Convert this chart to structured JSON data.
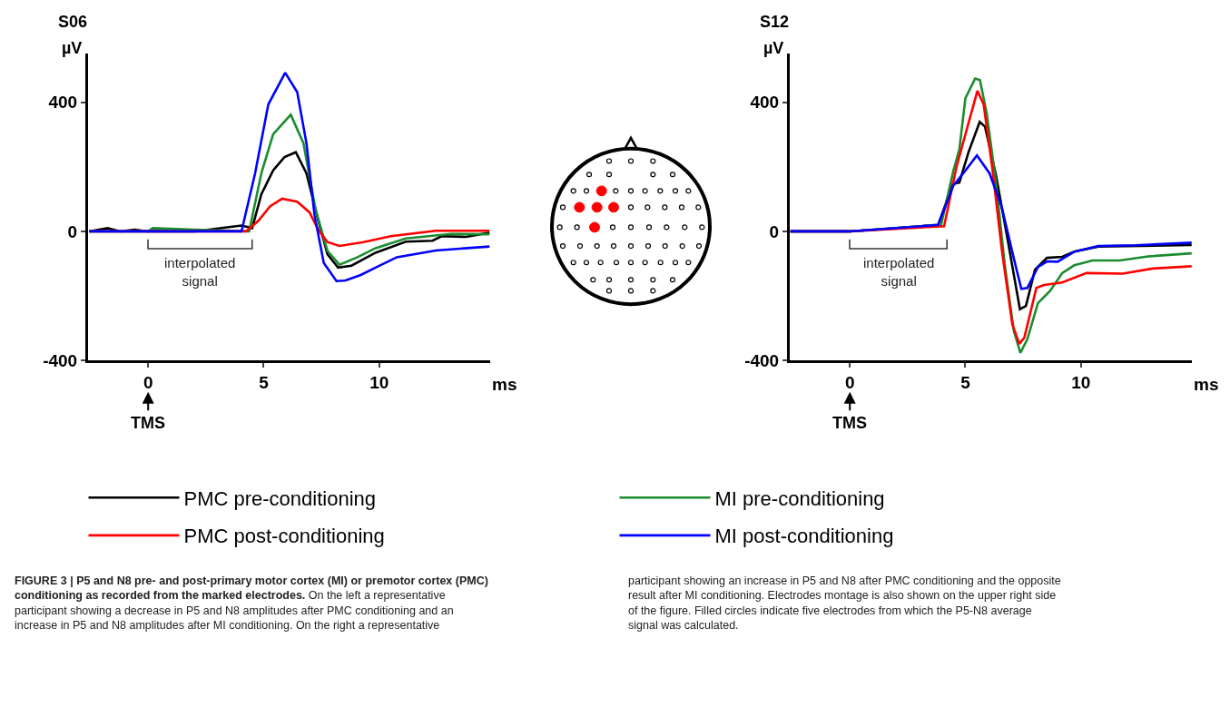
{
  "chart_data": [
    {
      "type": "line",
      "title": "S06",
      "xlabel": "ms",
      "ylabel": "µV",
      "xlim": [
        -2.6,
        14.8
      ],
      "ylim": [
        -400,
        550
      ],
      "xticks": [
        0,
        5,
        10
      ],
      "yticks": [
        -400,
        0,
        400
      ],
      "legend": "bottom",
      "series": [
        {
          "name": "PMC pre-conditioning",
          "color": "#000000",
          "x": [
            -2.55,
            -1.76,
            -1.2,
            -0.59,
            0,
            2,
            4.04,
            4.5,
            4.9,
            5.41,
            5.9,
            6.39,
            6.85,
            7.37,
            7.76,
            8.22,
            8.8,
            9.84,
            11.15,
            12.3,
            12.7,
            13.75,
            14.77
          ],
          "values": [
            0,
            10,
            0,
            5,
            0,
            0,
            18,
            10,
            115,
            189,
            230,
            245,
            180,
            32,
            -71,
            -112,
            -106,
            -66,
            -32,
            -29,
            -15,
            -17,
            -4
          ]
        },
        {
          "name": "MI pre-conditioning",
          "color": "#1a8c2e",
          "x": [
            -2.55,
            0,
            0.2,
            2,
            4.37,
            4.9,
            5.41,
            6.17,
            6.72,
            7.24,
            7.76,
            8.28,
            9.06,
            9.84,
            11.15,
            13.1,
            14.77
          ],
          "values": [
            0,
            0,
            10,
            5,
            0,
            180,
            301,
            361,
            273,
            69,
            -61,
            -103,
            -80,
            -52,
            -22,
            -8,
            -9
          ]
        },
        {
          "name": "PMC post-conditioning",
          "color": "#ff0000",
          "x": [
            -2.55,
            0,
            4.24,
            4.76,
            5.28,
            5.8,
            6.45,
            6.98,
            7.37,
            7.76,
            8.28,
            9.32,
            10.5,
            12.45,
            14.77
          ],
          "values": [
            0,
            0,
            0,
            32,
            78,
            101,
            92,
            59,
            4,
            -33,
            -45,
            -33,
            -15,
            2,
            2
          ]
        },
        {
          "name": "MI post-conditioning",
          "color": "#0000ff",
          "x": [
            -2.55,
            0,
            4.04,
            4.63,
            5.2,
            5.93,
            6.45,
            6.85,
            7.2,
            7.6,
            8.15,
            8.54,
            9.2,
            9.84,
            10.76,
            12.45,
            14.77
          ],
          "values": [
            0,
            0,
            0,
            180,
            393,
            491,
            431,
            273,
            50,
            -98,
            -154,
            -152,
            -135,
            -112,
            -80,
            -59,
            -47
          ]
        }
      ],
      "annotations": [
        {
          "text": "TMS",
          "x": 0
        },
        "interpolated signal",
        "FIGURE 3 | P5 and N8 pre- and post-primary motor cortex (MI) or premotor cortex (PMC) conditioning as recorded from the marked electrodes.",
        "On the left a representative participant showing a decrease in P5 and N8 amplitudes after PMC conditioning and an increase in P5 and N8 amplitudes after MI conditioning. On the right a representative participant showing an increase in P5 and N8 after PMC conditioning and the opposite result after MI conditioning. Electrodes montage is also shown on the upper right side of the figure. Filled circles indicate five electrodes from which the P5-N8 average signal was calculated."
      ]
    },
    {
      "type": "line",
      "title": "S12",
      "xlabel": "ms",
      "ylabel": "µV",
      "xlim": [
        -2.6,
        14.8
      ],
      "ylim": [
        -400,
        550
      ],
      "xticks": [
        0,
        5,
        10
      ],
      "yticks": [
        -400,
        0,
        400
      ],
      "series": [
        {
          "color": "#000000",
          "x": [
            -2.57,
            0,
            3.82,
            4.15,
            4.41,
            4.74,
            5.13,
            5.62,
            5.85,
            6.31,
            6.83,
            7.36,
            7.62,
            8.01,
            8.53,
            9.19,
            9.71,
            10.76,
            14.79
          ],
          "values": [
            0,
            0,
            20,
            86,
            146,
            151,
            244,
            339,
            324,
            179,
            -26,
            -241,
            -231,
            -119,
            -82,
            -79,
            -63,
            -47,
            -42
          ]
        },
        {
          "color": "#1a8c2e",
          "x": [
            -2.57,
            0,
            3.95,
            4.48,
            4.74,
            5,
            5.42,
            5.63,
            5.92,
            6.31,
            6.7,
            7.09,
            7.38,
            7.68,
            8.14,
            8.66,
            9.19,
            9.71,
            10.5,
            11.68,
            12.98,
            14.79
          ],
          "values": [
            0,
            0,
            20,
            188,
            254,
            412,
            473,
            468,
            366,
            160,
            -101,
            -306,
            -376,
            -334,
            -222,
            -185,
            -129,
            -105,
            -90,
            -90,
            -77,
            -68
          ]
        },
        {
          "color": "#ff0000",
          "x": [
            -2.57,
            0,
            4.08,
            4.61,
            5,
            5.52,
            5.79,
            6.18,
            6.57,
            7.03,
            7.33,
            7.55,
            8.07,
            8.4,
            9.19,
            10.24,
            11.81,
            13.1,
            14.79
          ],
          "values": [
            0,
            0,
            16,
            198,
            300,
            435,
            393,
            188,
            -54,
            -287,
            -348,
            -329,
            -175,
            -166,
            -158,
            -129,
            -131,
            -115,
            -108
          ]
        },
        {
          "color": "#0000ff",
          "x": [
            -2.57,
            0,
            3.82,
            4.08,
            4.48,
            5,
            5.5,
            6.05,
            6.57,
            7.09,
            7.42,
            7.68,
            8.14,
            8.53,
            8.99,
            9.71,
            10.76,
            12.33,
            14.79
          ],
          "values": [
            0,
            0,
            20,
            67,
            142,
            188,
            235,
            179,
            76,
            -82,
            -178,
            -175,
            -110,
            -93,
            -94,
            -63,
            -45,
            -43,
            -35
          ]
        }
      ],
      "annotations": [
        {
          "text": "TMS",
          "x": 0
        },
        "interpolated signal"
      ]
    }
  ]
}
